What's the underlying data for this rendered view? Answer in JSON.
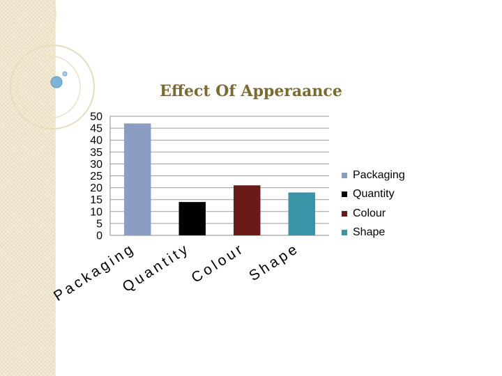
{
  "slide": {
    "band_color": "#f4ecd6"
  },
  "chart_data": {
    "type": "bar",
    "title": "Effect Of Apperaance",
    "categories": [
      "Packaging",
      "Quantity",
      "Colour",
      "Shape"
    ],
    "values": [
      47,
      14,
      21,
      18
    ],
    "colors": [
      "#8b9dc3",
      "#000000",
      "#6b1a1a",
      "#3a94a8"
    ],
    "ylim": [
      0,
      50
    ],
    "yticks": [
      0,
      5,
      10,
      15,
      20,
      25,
      30,
      35,
      40,
      45,
      50
    ],
    "grid": true,
    "legend_position": "right",
    "legend": [
      {
        "label": "Packaging",
        "color": "#8b9dc3"
      },
      {
        "label": "Quantity",
        "color": "#000000"
      },
      {
        "label": "Colour",
        "color": "#6b1a1a"
      },
      {
        "label": "Shape",
        "color": "#3a94a8"
      }
    ]
  }
}
